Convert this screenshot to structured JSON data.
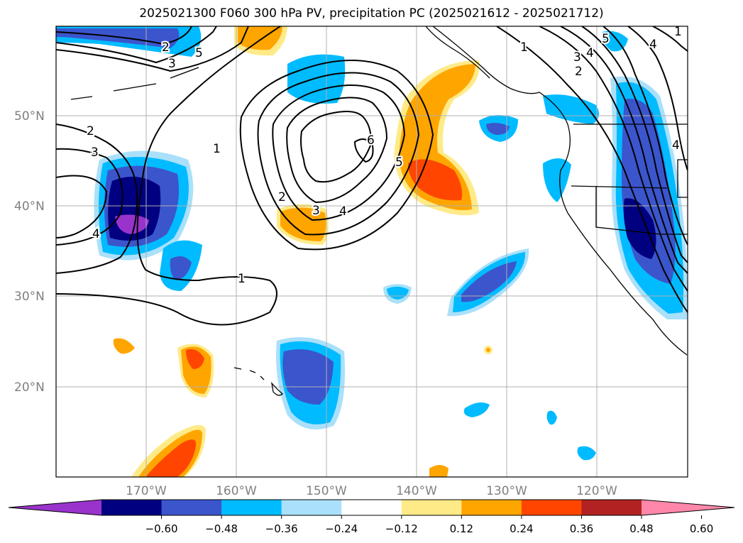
{
  "title": "2025021300 F060 300 hPa PV, precipitation PC (2025021612 - 2025021712)",
  "lat_labels": [
    "50°N",
    "40°N",
    "30°N",
    "20°N"
  ],
  "lon_labels": [
    "170°W",
    "160°W",
    "150°W",
    "140°W",
    "130°W",
    "120°W"
  ],
  "contour_labels": [
    "1",
    "2",
    "3",
    "4",
    "5",
    "6",
    "1",
    "2",
    "3",
    "4",
    "5",
    "1",
    "2",
    "3",
    "4",
    "5",
    "4",
    "4",
    "3",
    "2",
    "1"
  ],
  "colorbar": {
    "ticks": [
      "−0.60",
      "−0.48",
      "−0.36",
      "−0.24",
      "−0.12",
      "0.12",
      "0.24",
      "0.36",
      "0.48",
      "0.60"
    ],
    "colors": [
      "#9933cc",
      "#000080",
      "#3b55cc",
      "#00bbff",
      "#aae0fa",
      "#ffffff",
      "#ffea88",
      "#ffa500",
      "#ff4500",
      "#b22222",
      "#ff88aa"
    ]
  }
}
